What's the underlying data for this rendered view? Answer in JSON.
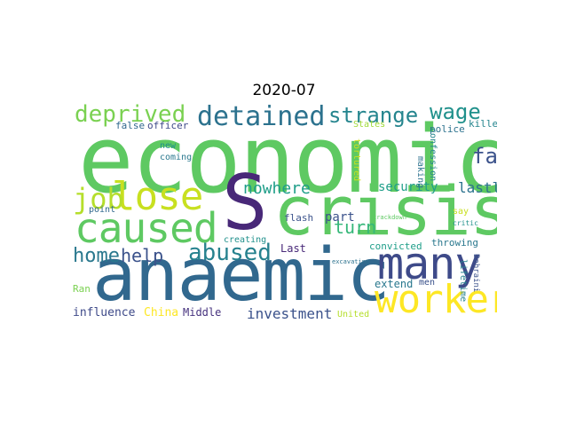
{
  "title": "2020-07",
  "words": [
    {
      "text": "economic",
      "color": "#5ec962"
    },
    {
      "text": "crisis",
      "color": "#5ec962"
    },
    {
      "text": "anaemic",
      "color": "#31688e"
    },
    {
      "text": "S",
      "color": "#482878"
    },
    {
      "text": "many",
      "color": "#3e4a89"
    },
    {
      "text": "worker",
      "color": "#fde725"
    },
    {
      "text": "caused",
      "color": "#5ec962"
    },
    {
      "text": "lose",
      "color": "#c8e020"
    },
    {
      "text": "job",
      "color": "#b5de2b"
    },
    {
      "text": "detained",
      "color": "#2c728e"
    },
    {
      "text": "deprived",
      "color": "#7ad151"
    },
    {
      "text": "strange",
      "color": "#25858e"
    },
    {
      "text": "wage",
      "color": "#21918c"
    },
    {
      "text": "far",
      "color": "#3b528b"
    },
    {
      "text": "abused",
      "color": "#26828e"
    },
    {
      "text": "home",
      "color": "#2a788e"
    },
    {
      "text": "help",
      "color": "#3b528b"
    },
    {
      "text": "nowhere",
      "color": "#1f9e89"
    },
    {
      "text": "turn",
      "color": "#35b779"
    },
    {
      "text": "security",
      "color": "#1f9e89"
    },
    {
      "text": "lastly",
      "color": "#2c728e"
    },
    {
      "text": "part",
      "color": "#3b528b"
    },
    {
      "text": "investment",
      "color": "#3b528b"
    },
    {
      "text": "extend",
      "color": "#2a788e"
    },
    {
      "text": "influence",
      "color": "#3e4a89"
    },
    {
      "text": "China",
      "color": "#fde725"
    },
    {
      "text": "Middle",
      "color": "#46327e"
    },
    {
      "text": "United",
      "color": "#b5de2b"
    },
    {
      "text": "false",
      "color": "#31688e"
    },
    {
      "text": "officer",
      "color": "#3e4a89"
    },
    {
      "text": "States",
      "color": "#a0da39"
    },
    {
      "text": "police",
      "color": "#2c728e"
    },
    {
      "text": "killed",
      "color": "#25858e"
    },
    {
      "text": "new",
      "color": "#21918c"
    },
    {
      "text": "coming",
      "color": "#2a788e"
    },
    {
      "text": "tortured",
      "color": "#c8e020"
    },
    {
      "text": "making",
      "color": "#2c728e"
    },
    {
      "text": "confession",
      "color": "#25858e"
    },
    {
      "text": "point",
      "color": "#31688e"
    },
    {
      "text": "flash",
      "color": "#3b528b"
    },
    {
      "text": "crackdown",
      "color": "#5ec962"
    },
    {
      "text": "say",
      "color": "#c8e020"
    },
    {
      "text": "critic",
      "color": "#21918c"
    },
    {
      "text": "creating",
      "color": "#21918c"
    },
    {
      "text": "convicted",
      "color": "#1f9e89"
    },
    {
      "text": "throwing",
      "color": "#2a788e"
    },
    {
      "text": "Last",
      "color": "#482878"
    },
    {
      "text": "Ran",
      "color": "#7ad151"
    },
    {
      "text": "men",
      "color": "#3b528b"
    },
    {
      "text": "excavating",
      "color": "#2c728e"
    },
    {
      "text": "lifetime",
      "color": "#26828e"
    },
    {
      "text": "Bahraini",
      "color": "#3b528b"
    }
  ]
}
